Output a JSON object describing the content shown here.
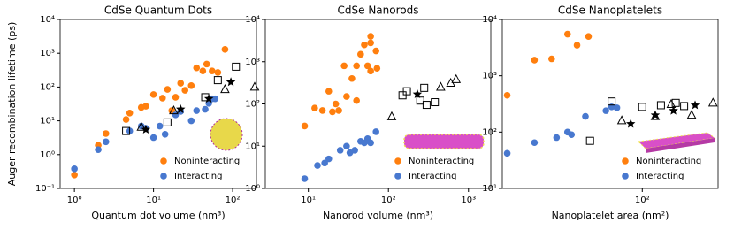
{
  "chart_data": [
    {
      "type": "scatter",
      "title": "CdSe Quantum Dots",
      "xlabel": "Quantum dot volume (nm³)",
      "ylabel": "Auger recombination lifetime (ps)",
      "log_x": true,
      "log_y": true,
      "xlim": [
        0.66,
        200
      ],
      "ylim": [
        0.1,
        10000
      ],
      "xticks": [
        {
          "value": 1,
          "label": "10⁰"
        },
        {
          "value": 10,
          "label": "10¹"
        },
        {
          "value": 100,
          "label": "10²"
        }
      ],
      "yticks": [
        {
          "value": 0.1,
          "label": "10⁻¹"
        },
        {
          "value": 1,
          "label": "10⁰"
        },
        {
          "value": 10,
          "label": "10¹"
        },
        {
          "value": 100,
          "label": "10²"
        },
        {
          "value": 1000,
          "label": "10³"
        },
        {
          "value": 10000,
          "label": "10⁴"
        }
      ],
      "series": [
        {
          "name": "Noninteracting",
          "color": "#ff7f0e",
          "marker": "circle",
          "x": [
            1,
            2,
            2.5,
            4.5,
            5,
            7,
            8,
            10,
            13,
            15,
            17,
            19,
            22,
            25,
            30,
            35,
            42,
            47,
            55,
            65,
            80
          ],
          "values": [
            0.25,
            1.9,
            4.2,
            11,
            17,
            25,
            27,
            60,
            47,
            85,
            20,
            50,
            130,
            80,
            110,
            370,
            300,
            480,
            300,
            270,
            1300
          ]
        },
        {
          "name": "Interacting",
          "color": "#4878cf",
          "marker": "circle",
          "x": [
            1,
            2,
            2.5,
            5,
            7,
            8,
            10,
            12,
            14,
            19,
            22,
            30,
            35,
            45,
            50,
            55,
            60
          ],
          "values": [
            0.38,
            1.4,
            2.4,
            5,
            7,
            6,
            3.2,
            7,
            4,
            15,
            19,
            10,
            20,
            22,
            33,
            45,
            45
          ]
        },
        {
          "color": "#000000",
          "marker": "square",
          "x": [
            4.5,
            15,
            45,
            65,
            110
          ],
          "values": [
            5,
            9,
            50,
            160,
            400
          ]
        },
        {
          "color": "#000000",
          "marker": "triangle",
          "x": [
            7,
            18,
            80,
            190
          ],
          "values": [
            6.5,
            20,
            85,
            100
          ]
        },
        {
          "color": "#000000",
          "marker": "star",
          "x": [
            8,
            22,
            50,
            95
          ],
          "values": [
            5.5,
            22,
            45,
            140
          ]
        }
      ]
    },
    {
      "type": "scatter",
      "title": "CdSe Nanorods",
      "xlabel": "Nanorod volume (nm³)",
      "log_x": true,
      "log_y": true,
      "xlim": [
        2.9,
        1900
      ],
      "ylim": [
        1,
        10000
      ],
      "xticks": [
        {
          "value": 10,
          "label": "10¹"
        },
        {
          "value": 100,
          "label": "10²"
        },
        {
          "value": 1000,
          "label": "10³"
        }
      ],
      "yticks": [
        {
          "value": 1,
          "label": "10⁰"
        },
        {
          "value": 10,
          "label": "10¹"
        },
        {
          "value": 100,
          "label": "10²"
        },
        {
          "value": 1000,
          "label": "10³"
        },
        {
          "value": 10000,
          "label": "10⁴"
        }
      ],
      "series": [
        {
          "name": "Noninteracting",
          "color": "#ff7f0e",
          "marker": "circle",
          "x": [
            9,
            12,
            15,
            18,
            20,
            22,
            24,
            28,
            30,
            35,
            40,
            40,
            45,
            50,
            55,
            60,
            60,
            70,
            72,
            60
          ],
          "values": [
            30,
            80,
            70,
            200,
            65,
            100,
            70,
            800,
            150,
            400,
            800,
            120,
            1500,
            2500,
            800,
            4000,
            600,
            1800,
            700,
            2800
          ]
        },
        {
          "name": "Interacting",
          "color": "#4878cf",
          "marker": "circle",
          "x": [
            9,
            13,
            16,
            18,
            25,
            30,
            33,
            38,
            45,
            50,
            55,
            60,
            70
          ],
          "values": [
            1.7,
            3.5,
            4,
            5,
            8,
            10,
            7,
            8,
            13,
            12,
            15,
            12,
            22
          ]
        },
        {
          "color": "#000000",
          "marker": "square",
          "x": [
            150,
            170,
            280,
            250,
            300,
            380
          ],
          "values": [
            160,
            200,
            240,
            120,
            95,
            110
          ]
        },
        {
          "color": "#000000",
          "marker": "triangle",
          "x": [
            110,
            450,
            600,
            700
          ],
          "values": [
            50,
            250,
            310,
            380
          ]
        },
        {
          "color": "#000000",
          "marker": "star",
          "x": [
            230
          ],
          "values": [
            170
          ]
        }
      ]
    },
    {
      "type": "scatter",
      "title": "CdSe Nanoplatelets",
      "xlabel": "Nanoplatelet area (nm²)",
      "log_x": true,
      "log_y": true,
      "xlim": [
        14,
        290
      ],
      "ylim": [
        10,
        10000
      ],
      "xticks": [
        {
          "value": 100,
          "label": "10²"
        }
      ],
      "yticks": [
        {
          "value": 10,
          "label": "10¹"
        },
        {
          "value": 100,
          "label": "10²"
        },
        {
          "value": 1000,
          "label": "10³"
        },
        {
          "value": 10000,
          "label": "10⁴"
        }
      ],
      "series": [
        {
          "name": "Noninteracting",
          "color": "#ff7f0e",
          "marker": "circle",
          "x": [
            15,
            22,
            28,
            35,
            40,
            47
          ],
          "values": [
            450,
            1900,
            2000,
            5500,
            3500,
            5000
          ]
        },
        {
          "name": "Interacting",
          "color": "#4878cf",
          "marker": "circle",
          "x": [
            15,
            22,
            30,
            35,
            37,
            45,
            60,
            65,
            70
          ],
          "values": [
            42,
            65,
            80,
            100,
            90,
            190,
            240,
            280,
            270
          ]
        },
        {
          "color": "#000000",
          "marker": "square",
          "x": [
            48,
            65,
            100,
            130,
            160,
            180
          ],
          "values": [
            70,
            350,
            280,
            300,
            330,
            290
          ]
        },
        {
          "color": "#000000",
          "marker": "triangle",
          "x": [
            75,
            120,
            150,
            200,
            270
          ],
          "values": [
            160,
            190,
            310,
            200,
            330
          ]
        },
        {
          "color": "#000000",
          "marker": "star",
          "x": [
            85,
            120,
            155,
            210
          ],
          "values": [
            140,
            200,
            240,
            300
          ]
        }
      ]
    }
  ]
}
